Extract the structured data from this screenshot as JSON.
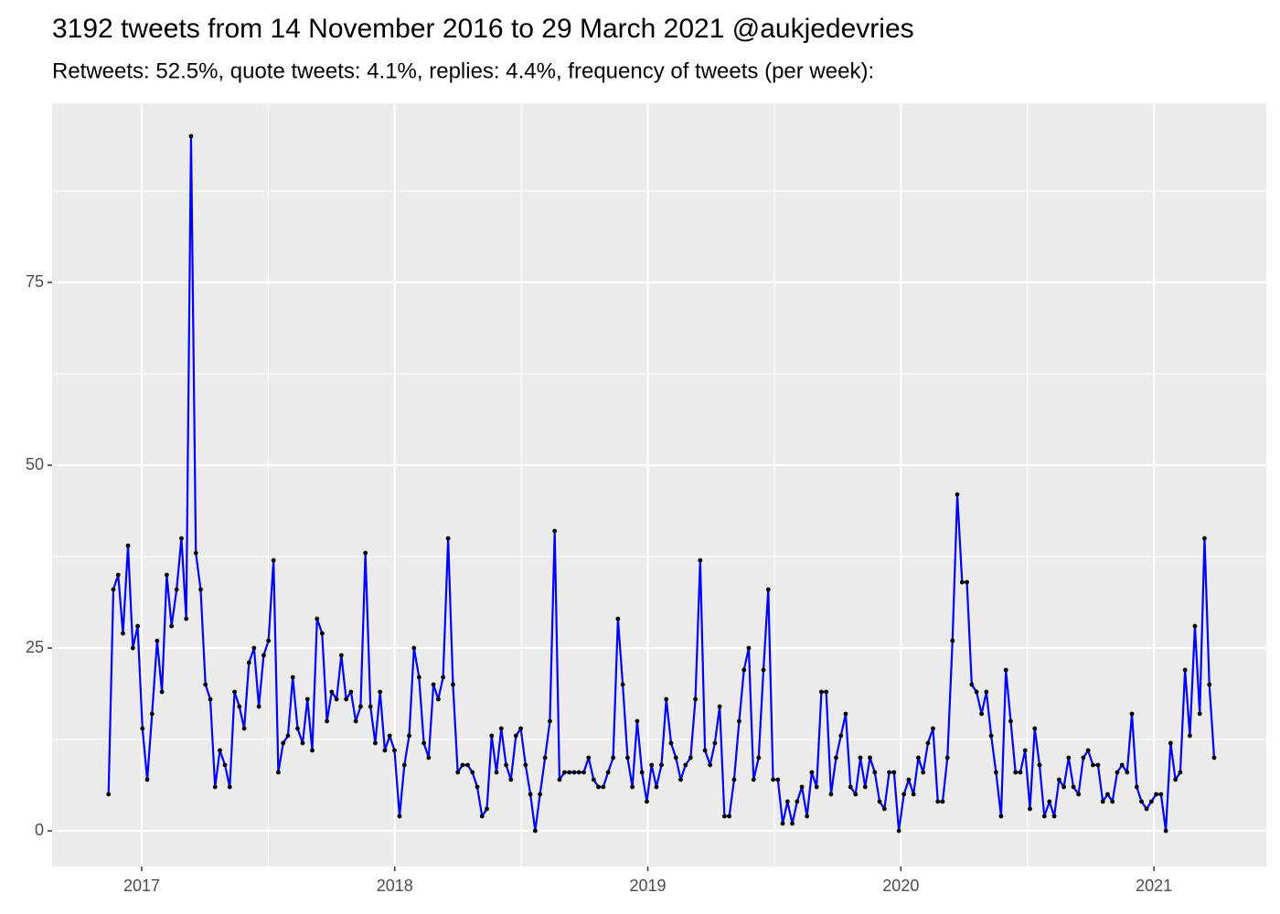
{
  "chart_data": {
    "type": "line",
    "title": "3192 tweets from 14 November 2016 to 29 March 2021 @aukjedevries",
    "subtitle": "Retweets: 52.5%, quote tweets: 4.1%, replies: 4.4%, frequency of tweets (per week):",
    "x": [
      2016.869,
      2016.888,
      2016.907,
      2016.926,
      2016.946,
      2016.965,
      2016.984,
      2017.003,
      2017.022,
      2017.041,
      2017.061,
      2017.08,
      2017.099,
      2017.118,
      2017.138,
      2017.157,
      2017.176,
      2017.195,
      2017.214,
      2017.233,
      2017.252,
      2017.271,
      2017.29,
      2017.309,
      2017.329,
      2017.348,
      2017.367,
      2017.386,
      2017.405,
      2017.424,
      2017.444,
      2017.463,
      2017.482,
      2017.501,
      2017.521,
      2017.54,
      2017.559,
      2017.578,
      2017.597,
      2017.616,
      2017.636,
      2017.655,
      2017.674,
      2017.693,
      2017.713,
      2017.732,
      2017.751,
      2017.77,
      2017.789,
      2017.808,
      2017.827,
      2017.846,
      2017.865,
      2017.884,
      2017.904,
      2017.923,
      2017.942,
      2017.961,
      2017.98,
      2017.999,
      2018.019,
      2018.038,
      2018.057,
      2018.076,
      2018.096,
      2018.115,
      2018.134,
      2018.153,
      2018.172,
      2018.191,
      2018.211,
      2018.23,
      2018.249,
      2018.268,
      2018.288,
      2018.307,
      2018.326,
      2018.345,
      2018.364,
      2018.383,
      2018.402,
      2018.421,
      2018.44,
      2018.459,
      2018.479,
      2018.498,
      2018.517,
      2018.536,
      2018.555,
      2018.574,
      2018.594,
      2018.613,
      2018.632,
      2018.651,
      2018.671,
      2018.69,
      2018.709,
      2018.728,
      2018.747,
      2018.766,
      2018.786,
      2018.805,
      2018.824,
      2018.843,
      2018.863,
      2018.882,
      2018.901,
      2018.92,
      2018.939,
      2018.958,
      2018.977,
      2018.996,
      2019.015,
      2019.034,
      2019.054,
      2019.073,
      2019.092,
      2019.111,
      2019.13,
      2019.149,
      2019.169,
      2019.188,
      2019.207,
      2019.226,
      2019.246,
      2019.265,
      2019.284,
      2019.303,
      2019.322,
      2019.341,
      2019.361,
      2019.38,
      2019.399,
      2019.418,
      2019.438,
      2019.457,
      2019.476,
      2019.495,
      2019.514,
      2019.533,
      2019.552,
      2019.571,
      2019.59,
      2019.609,
      2019.629,
      2019.648,
      2019.667,
      2019.686,
      2019.705,
      2019.724,
      2019.744,
      2019.763,
      2019.782,
      2019.801,
      2019.821,
      2019.84,
      2019.859,
      2019.878,
      2019.897,
      2019.916,
      2019.935,
      2019.954,
      2019.973,
      2019.992,
      2020.012,
      2020.031,
      2020.05,
      2020.069,
      2020.088,
      2020.107,
      2020.127,
      2020.146,
      2020.165,
      2020.184,
      2020.204,
      2020.223,
      2020.242,
      2020.261,
      2020.28,
      2020.299,
      2020.319,
      2020.338,
      2020.357,
      2020.376,
      2020.396,
      2020.415,
      2020.434,
      2020.453,
      2020.472,
      2020.491,
      2020.51,
      2020.529,
      2020.548,
      2020.567,
      2020.587,
      2020.606,
      2020.625,
      2020.644,
      2020.663,
      2020.682,
      2020.702,
      2020.721,
      2020.74,
      2020.759,
      2020.779,
      2020.798,
      2020.817,
      2020.836,
      2020.855,
      2020.874,
      2020.894,
      2020.913,
      2020.932,
      2020.951,
      2020.971,
      2020.99,
      2021.009,
      2021.028,
      2021.047,
      2021.066,
      2021.085,
      2021.104,
      2021.123,
      2021.142,
      2021.162,
      2021.181,
      2021.2,
      2021.219,
      2021.238
    ],
    "series": [
      {
        "color": "#0000ff",
        "marker_color": "#000000",
        "values": [
          5,
          33,
          35,
          27,
          39,
          25,
          28,
          14,
          7,
          16,
          26,
          19,
          35,
          28,
          33,
          40,
          29,
          95,
          38,
          33,
          20,
          18,
          6,
          11,
          9,
          6,
          19,
          17,
          14,
          23,
          25,
          17,
          24,
          26,
          37,
          8,
          12,
          13,
          21,
          14,
          12,
          18,
          11,
          29,
          27,
          15,
          19,
          18,
          24,
          18,
          19,
          15,
          17,
          38,
          17,
          12,
          19,
          11,
          13,
          11,
          2,
          9,
          13,
          25,
          21,
          12,
          10,
          20,
          18,
          21,
          40,
          20,
          8,
          9,
          9,
          8,
          6,
          2,
          3,
          13,
          8,
          14,
          9,
          7,
          13,
          14,
          9,
          5,
          0,
          5,
          10,
          15,
          41,
          7,
          8,
          8,
          8,
          8,
          8,
          10,
          7,
          6,
          6,
          8,
          10,
          29,
          20,
          10,
          6,
          15,
          8,
          4,
          9,
          6,
          9,
          18,
          12,
          10,
          7,
          9,
          10,
          18,
          37,
          11,
          9,
          12,
          17,
          2,
          2,
          7,
          15,
          22,
          25,
          7,
          10,
          22,
          33,
          7,
          7,
          1,
          4,
          1,
          4,
          6,
          2,
          8,
          6,
          19,
          19,
          5,
          10,
          13,
          16,
          6,
          5,
          10,
          6,
          10,
          8,
          4,
          3,
          8,
          8,
          0,
          5,
          7,
          5,
          10,
          8,
          12,
          14,
          4,
          4,
          10,
          26,
          46,
          34,
          34,
          20,
          19,
          16,
          19,
          13,
          8,
          2,
          22,
          15,
          8,
          8,
          11,
          3,
          14,
          9,
          2,
          4,
          2,
          7,
          6,
          10,
          6,
          5,
          10,
          11,
          9,
          9,
          4,
          5,
          4,
          8,
          9,
          8,
          16,
          6,
          4,
          3,
          4,
          5,
          5,
          0,
          12,
          7,
          8,
          22,
          13,
          28,
          16,
          40,
          20,
          10
        ]
      }
    ],
    "xlim": [
      2016.646,
      2021.444
    ],
    "xticks": [
      2017,
      2018,
      2019,
      2020,
      2021
    ],
    "ylim": [
      -4.875,
      99.5
    ],
    "yticks": [
      0,
      25,
      50,
      75
    ],
    "grid": true
  }
}
